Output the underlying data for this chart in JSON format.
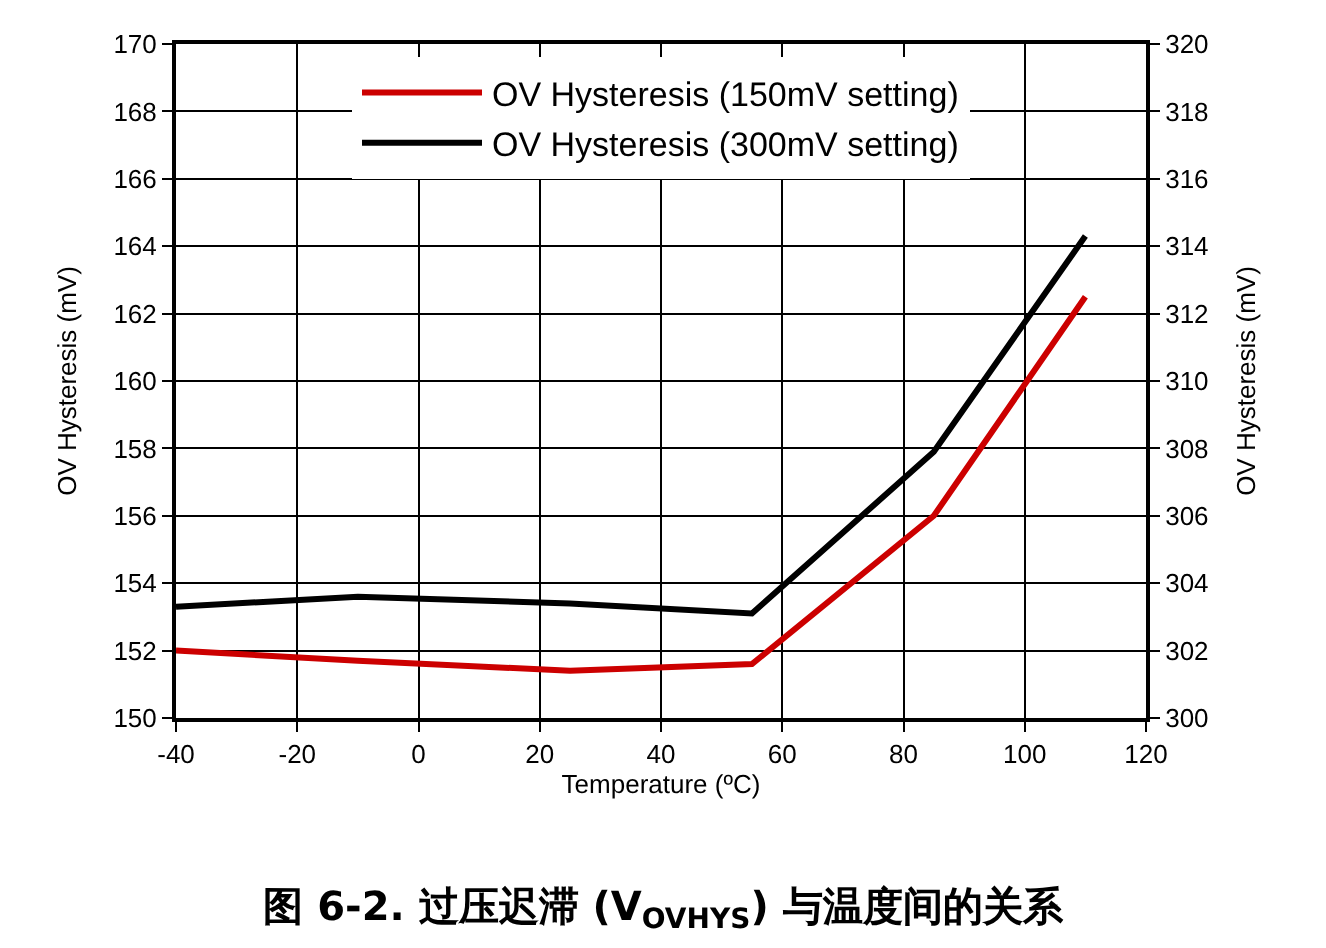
{
  "chart_data": {
    "type": "line",
    "title": "图 6-2. 过压迟滞 (V$_{OVHYS}$) 与温度间的关系",
    "xlabel": "Temperature (ºC)",
    "ylabel": "OV Hysteresis (mV)",
    "y2label": "OV Hysteresis (mV)",
    "series": [
      {
        "name": "OV Hysteresis (150mV setting)",
        "color": "#cc0000",
        "x": [
          -40,
          -10,
          25,
          55,
          85,
          110
        ],
        "values": [
          152.0,
          151.7,
          151.4,
          151.6,
          156.0,
          162.5
        ]
      },
      {
        "name": "OV Hysteresis (300mV setting)",
        "color": "#000000",
        "axis": "y2",
        "x": [
          -40,
          -10,
          25,
          55,
          85,
          110
        ],
        "values": [
          303.3,
          303.6,
          303.4,
          303.1,
          307.9,
          314.3
        ]
      }
    ],
    "xlim": [
      -40,
      120
    ],
    "xticks": [
      -40,
      -20,
      0,
      20,
      40,
      60,
      80,
      100,
      120
    ],
    "ylim": [
      150,
      170
    ],
    "yticks": [
      150,
      152,
      154,
      156,
      158,
      160,
      162,
      164,
      166,
      168,
      170
    ],
    "y2lim": [
      300,
      320
    ],
    "y2ticks": [
      300,
      302,
      304,
      306,
      308,
      310,
      312,
      314,
      316,
      318,
      320
    ],
    "grid": true,
    "legend": "top",
    "marker": "none",
    "line_style": "solid"
  }
}
